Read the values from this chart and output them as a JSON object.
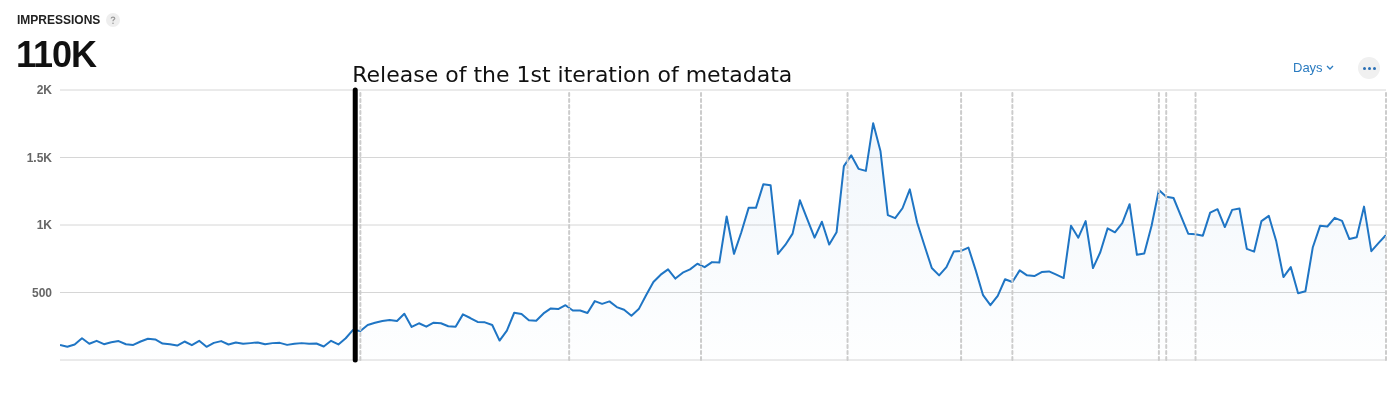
{
  "chart_data": {
    "type": "area",
    "title": "IMPRESSIONS",
    "subtitle": "110K",
    "annotations": [
      "Release of the 1st iteration of metadata",
      "Days"
    ],
    "categories": [
      null,
      null,
      null,
      null,
      null,
      null,
      null,
      null,
      null,
      null,
      null,
      null,
      null,
      null,
      null,
      null,
      null,
      null,
      null,
      null,
      null,
      null,
      null,
      null,
      null,
      null,
      null,
      null,
      null,
      null,
      null,
      null,
      null,
      null,
      null,
      null,
      null,
      null,
      null,
      null,
      null,
      null,
      null,
      null,
      null,
      null,
      null,
      null,
      null,
      null,
      null,
      null,
      null,
      null,
      null,
      null,
      null,
      null,
      null,
      null,
      null,
      null,
      null,
      null,
      null,
      null,
      null,
      null,
      null,
      null,
      null,
      null,
      null,
      null,
      null,
      null,
      null,
      null,
      null,
      null,
      null,
      null,
      null,
      null,
      null,
      null,
      null,
      null,
      null,
      null,
      null,
      null,
      null,
      null,
      null,
      null,
      null,
      null,
      null,
      null,
      null,
      null,
      null,
      null,
      null,
      null,
      null,
      null,
      null,
      null,
      null,
      null,
      null,
      null,
      null,
      null,
      null,
      null,
      null,
      null,
      null,
      null,
      null,
      null,
      null,
      null,
      null,
      null,
      null,
      null,
      null,
      null,
      null,
      null,
      null,
      null,
      null,
      null,
      null,
      null,
      null,
      null,
      null,
      null,
      null,
      null,
      null,
      null,
      null,
      null,
      null,
      null,
      null,
      null,
      null,
      null,
      null,
      null,
      null,
      null,
      null,
      null,
      null,
      null,
      null,
      null,
      null,
      null,
      null,
      null,
      null,
      null,
      null,
      null,
      null,
      null,
      null,
      null,
      null,
      null,
      null,
      null
    ],
    "series": [
      {
        "color": "#1f75c4",
        "values": [
          112,
          98,
          115,
          161,
          120,
          142,
          117,
          132,
          140,
          117,
          112,
          137,
          157,
          152,
          122,
          117,
          107,
          137,
          110,
          142,
          98,
          127,
          140,
          115,
          130,
          120,
          125,
          130,
          117,
          125,
          127,
          112,
          120,
          125,
          120,
          122,
          100,
          142,
          115,
          161,
          223,
          215,
          259,
          276,
          289,
          296,
          289,
          343,
          245,
          272,
          247,
          276,
          272,
          250,
          247,
          338,
          311,
          282,
          279,
          259,
          144,
          218,
          350,
          340,
          294,
          291,
          345,
          382,
          377,
          406,
          367,
          367,
          348,
          436,
          416,
          434,
          392,
          372,
          328,
          377,
          480,
          578,
          632,
          671,
          603,
          647,
          671,
          713,
          688,
          725,
          722,
          1063,
          786,
          946,
          1127,
          1127,
          1301,
          1294,
          786,
          852,
          936,
          1183,
          1044,
          906,
          1024,
          855,
          946,
          1436,
          1516,
          1416,
          1401,
          1754,
          1546,
          1073,
          1051,
          1124,
          1264,
          1019,
          848,
          681,
          627,
          688,
          803,
          808,
          833,
          664,
          480,
          406,
          475,
          598,
          578,
          664,
          627,
          622,
          651,
          656,
          632,
          607,
          994,
          906,
          1029,
          681,
          798,
          975,
          946,
          1014,
          1154,
          779,
          789,
          994,
          1259,
          1210,
          1200,
          1068,
          936,
          931,
          921,
          1092,
          1117,
          985,
          1112,
          1122,
          823,
          803,
          1029,
          1068,
          884,
          614,
          688,
          495,
          509,
          833,
          994,
          989,
          1053,
          1031,
          896,
          909,
          1136,
          806,
          867,
          926
        ]
      }
    ],
    "ylim": [
      0,
      2000
    ],
    "yticks": [
      {
        "value": 0,
        "label": null
      },
      500,
      {
        "value": 1000,
        "label": "1K"
      },
      {
        "value": 1500,
        "label": "1.5K"
      },
      {
        "value": 2000,
        "label": "2K"
      }
    ],
    "tick_labels": "y",
    "grid": "y",
    "legend": false
  }
}
